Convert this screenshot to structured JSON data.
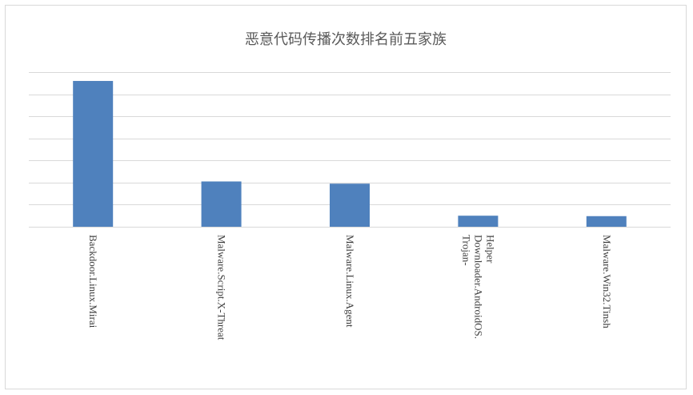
{
  "chart_data": {
    "type": "bar",
    "title": "恶意代码传播次数排名前五家族",
    "categories": [
      [
        "Backdoor.Linux.Mirai"
      ],
      [
        "Malware.Script.X-Threat"
      ],
      [
        "Malware.Linux.Agent"
      ],
      [
        "Trojan-",
        "Downloader.AndroidOS.",
        "Helper"
      ],
      [
        "Malware.Win32.Tinsh"
      ]
    ],
    "values": [
      6.6,
      2.05,
      1.95,
      0.5,
      0.48
    ],
    "ylim": [
      0,
      7
    ],
    "gridlines": true,
    "y_tick_labels_shown": false,
    "bar_color": "#4f81bd",
    "grid_color": "#d9d9d9"
  }
}
